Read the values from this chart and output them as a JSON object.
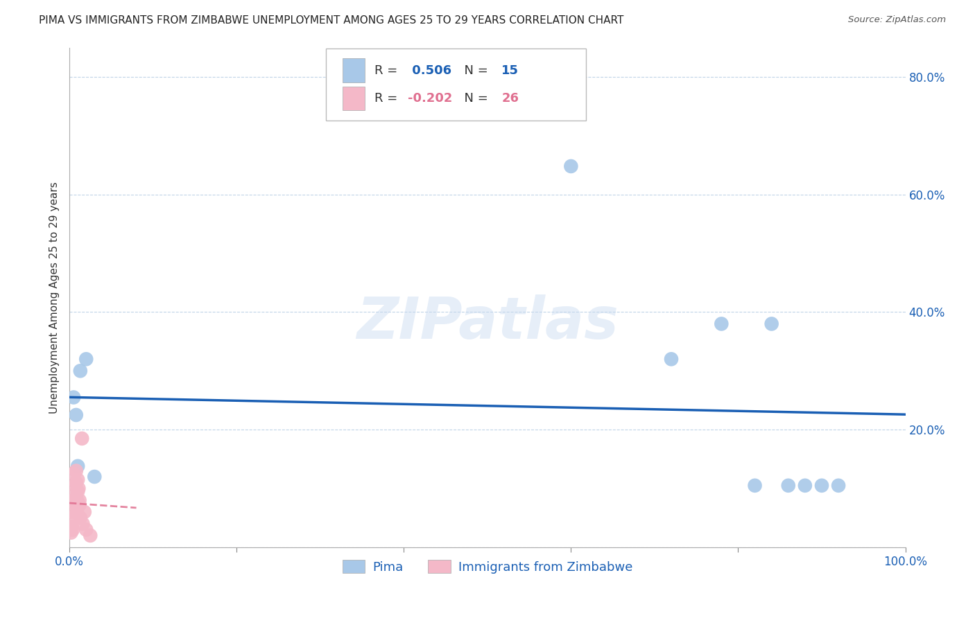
{
  "title": "PIMA VS IMMIGRANTS FROM ZIMBABWE UNEMPLOYMENT AMONG AGES 25 TO 29 YEARS CORRELATION CHART",
  "source": "Source: ZipAtlas.com",
  "ylabel": "Unemployment Among Ages 25 to 29 years",
  "watermark": "ZIPatlas",
  "legend_pima": "Pima",
  "legend_zimbabwe": "Immigrants from Zimbabwe",
  "R_pima": 0.506,
  "N_pima": 15,
  "R_zimbabwe": -0.202,
  "N_zimbabwe": 26,
  "pima_color": "#a8c8e8",
  "pima_line_color": "#1a5fb4",
  "zimbabwe_color": "#f4b8c8",
  "zimbabwe_line_color": "#e07090",
  "background_color": "#ffffff",
  "xlim": [
    0.0,
    1.0
  ],
  "ylim": [
    0.0,
    0.85
  ],
  "pima_x": [
    0.005,
    0.008,
    0.01,
    0.013,
    0.02,
    0.03,
    0.6,
    0.72,
    0.78,
    0.82,
    0.84,
    0.86,
    0.88,
    0.9,
    0.92
  ],
  "pima_y": [
    0.255,
    0.225,
    0.138,
    0.3,
    0.32,
    0.12,
    0.648,
    0.32,
    0.38,
    0.105,
    0.38,
    0.105,
    0.105,
    0.105,
    0.105
  ],
  "zimbabwe_x": [
    0.001,
    0.002,
    0.003,
    0.003,
    0.004,
    0.004,
    0.005,
    0.005,
    0.006,
    0.007,
    0.007,
    0.008,
    0.008,
    0.009,
    0.009,
    0.01,
    0.01,
    0.011,
    0.012,
    0.012,
    0.013,
    0.015,
    0.016,
    0.018,
    0.02,
    0.025
  ],
  "zimbabwe_y": [
    0.03,
    0.025,
    0.05,
    0.035,
    0.03,
    0.06,
    0.08,
    0.125,
    0.09,
    0.075,
    0.105,
    0.11,
    0.13,
    0.06,
    0.08,
    0.095,
    0.115,
    0.1,
    0.072,
    0.08,
    0.05,
    0.185,
    0.04,
    0.06,
    0.03,
    0.02
  ],
  "ytick_values": [
    0.0,
    0.2,
    0.4,
    0.6,
    0.8
  ],
  "ytick_labels": [
    "",
    "20.0%",
    "40.0%",
    "60.0%",
    "80.0%"
  ],
  "xtick_values": [
    0.0,
    0.2,
    0.4,
    0.6,
    0.8,
    1.0
  ],
  "xtick_labels": [
    "0.0%",
    "",
    "",
    "",
    "",
    "100.0%"
  ],
  "title_fontsize": 11,
  "axis_label_fontsize": 11,
  "tick_fontsize": 12,
  "legend_fontsize": 13,
  "dot_size": 220
}
